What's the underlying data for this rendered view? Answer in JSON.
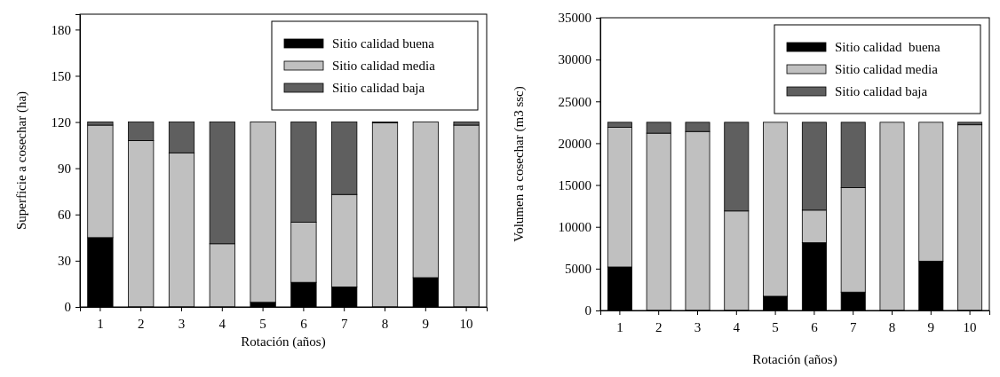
{
  "chart_data": [
    {
      "type": "bar",
      "stacked": true,
      "xlabel": "Rotación (años)",
      "ylabel": "Superficie a cosechar (ha)",
      "categories": [
        "1",
        "2",
        "3",
        "4",
        "5",
        "6",
        "7",
        "8",
        "9",
        "10"
      ],
      "ylim": [
        0,
        190
      ],
      "yticks": [
        0,
        30,
        60,
        90,
        120,
        150,
        180
      ],
      "legend": "top right",
      "grid": false,
      "series": [
        {
          "name": "Sitio calidad buena",
          "color": "#000000",
          "values": [
            45,
            0,
            0,
            0,
            3,
            16,
            13,
            0,
            19,
            0
          ]
        },
        {
          "name": "Sitio calidad media",
          "color": "#c0c0c0",
          "values": [
            73,
            108,
            100,
            41,
            117,
            39,
            60,
            119.5,
            101,
            118
          ]
        },
        {
          "name": "Sitio calidad baja",
          "color": "#5f5f5f",
          "values": [
            2,
            12,
            20,
            79,
            0,
            65,
            47,
            0.5,
            0,
            2
          ]
        }
      ]
    },
    {
      "type": "bar",
      "stacked": true,
      "xlabel": "Rotación (años)",
      "ylabel": "Volumen a cosechar (m3 ssc)",
      "categories": [
        "1",
        "2",
        "3",
        "4",
        "5",
        "6",
        "7",
        "8",
        "9",
        "10"
      ],
      "ylim": [
        0,
        35000
      ],
      "yticks": [
        0,
        5000,
        10000,
        15000,
        20000,
        25000,
        30000,
        35000
      ],
      "legend": "top right",
      "grid": false,
      "series": [
        {
          "name": "Sitio calidad  buena",
          "color": "#000000",
          "values": [
            5200,
            0,
            0,
            0,
            1700,
            8100,
            2200,
            0,
            5900,
            0
          ]
        },
        {
          "name": "Sitio calidad media",
          "color": "#c0c0c0",
          "values": [
            16700,
            21200,
            21400,
            11900,
            20800,
            3900,
            12500,
            22500,
            16600,
            22200
          ]
        },
        {
          "name": "Sitio calidad baja",
          "color": "#5f5f5f",
          "values": [
            600,
            1300,
            1100,
            10600,
            0,
            10500,
            7800,
            0,
            0,
            300
          ]
        }
      ]
    }
  ]
}
